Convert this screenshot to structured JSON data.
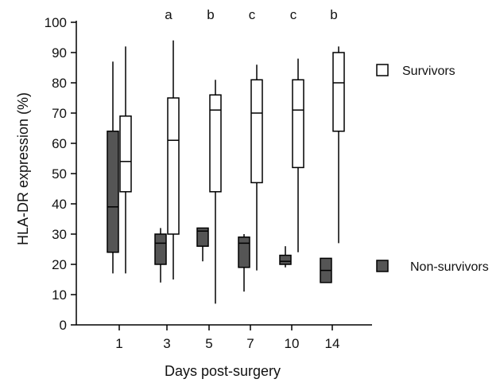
{
  "chart_data": {
    "type": "box",
    "xlabel": "Days post-surgery",
    "ylabel": "HLA-DR expression (%)",
    "ylim": [
      0,
      100
    ],
    "yticks": [
      0,
      10,
      20,
      30,
      40,
      50,
      60,
      70,
      80,
      90,
      100
    ],
    "categories": [
      "1",
      "3",
      "5",
      "7",
      "10",
      "14"
    ],
    "significance": [
      "",
      "a",
      "b",
      "c",
      "c",
      "b"
    ],
    "legend_position": "right",
    "series": [
      {
        "name": "Non-survivors",
        "fill": "#555555",
        "boxes": [
          {
            "min": 17,
            "q1": 24,
            "median": 39,
            "q3": 64,
            "max": 87
          },
          {
            "min": 14,
            "q1": 20,
            "median": 27,
            "q3": 30,
            "max": 32
          },
          {
            "min": 21,
            "q1": 26,
            "median": 31,
            "q3": 32,
            "max": 32
          },
          {
            "min": 11,
            "q1": 19,
            "median": 27,
            "q3": 29,
            "max": 30
          },
          {
            "min": 19,
            "q1": 20,
            "median": 21,
            "q3": 23,
            "max": 26
          },
          {
            "min": 14,
            "q1": 14,
            "median": 18,
            "q3": 22,
            "max": 22
          }
        ]
      },
      {
        "name": "Survivors",
        "fill": "#ffffff",
        "boxes": [
          {
            "min": 17,
            "q1": 44,
            "median": 54,
            "q3": 69,
            "max": 92
          },
          {
            "min": 15,
            "q1": 30,
            "median": 61,
            "q3": 75,
            "max": 94
          },
          {
            "min": 7,
            "q1": 44,
            "median": 71,
            "q3": 76,
            "max": 81
          },
          {
            "min": 18,
            "q1": 47,
            "median": 70,
            "q3": 81,
            "max": 86
          },
          {
            "min": 24,
            "q1": 52,
            "median": 71,
            "q3": 81,
            "max": 88
          },
          {
            "min": 27,
            "q1": 64,
            "median": 80,
            "q3": 90,
            "max": 92
          }
        ]
      }
    ]
  }
}
